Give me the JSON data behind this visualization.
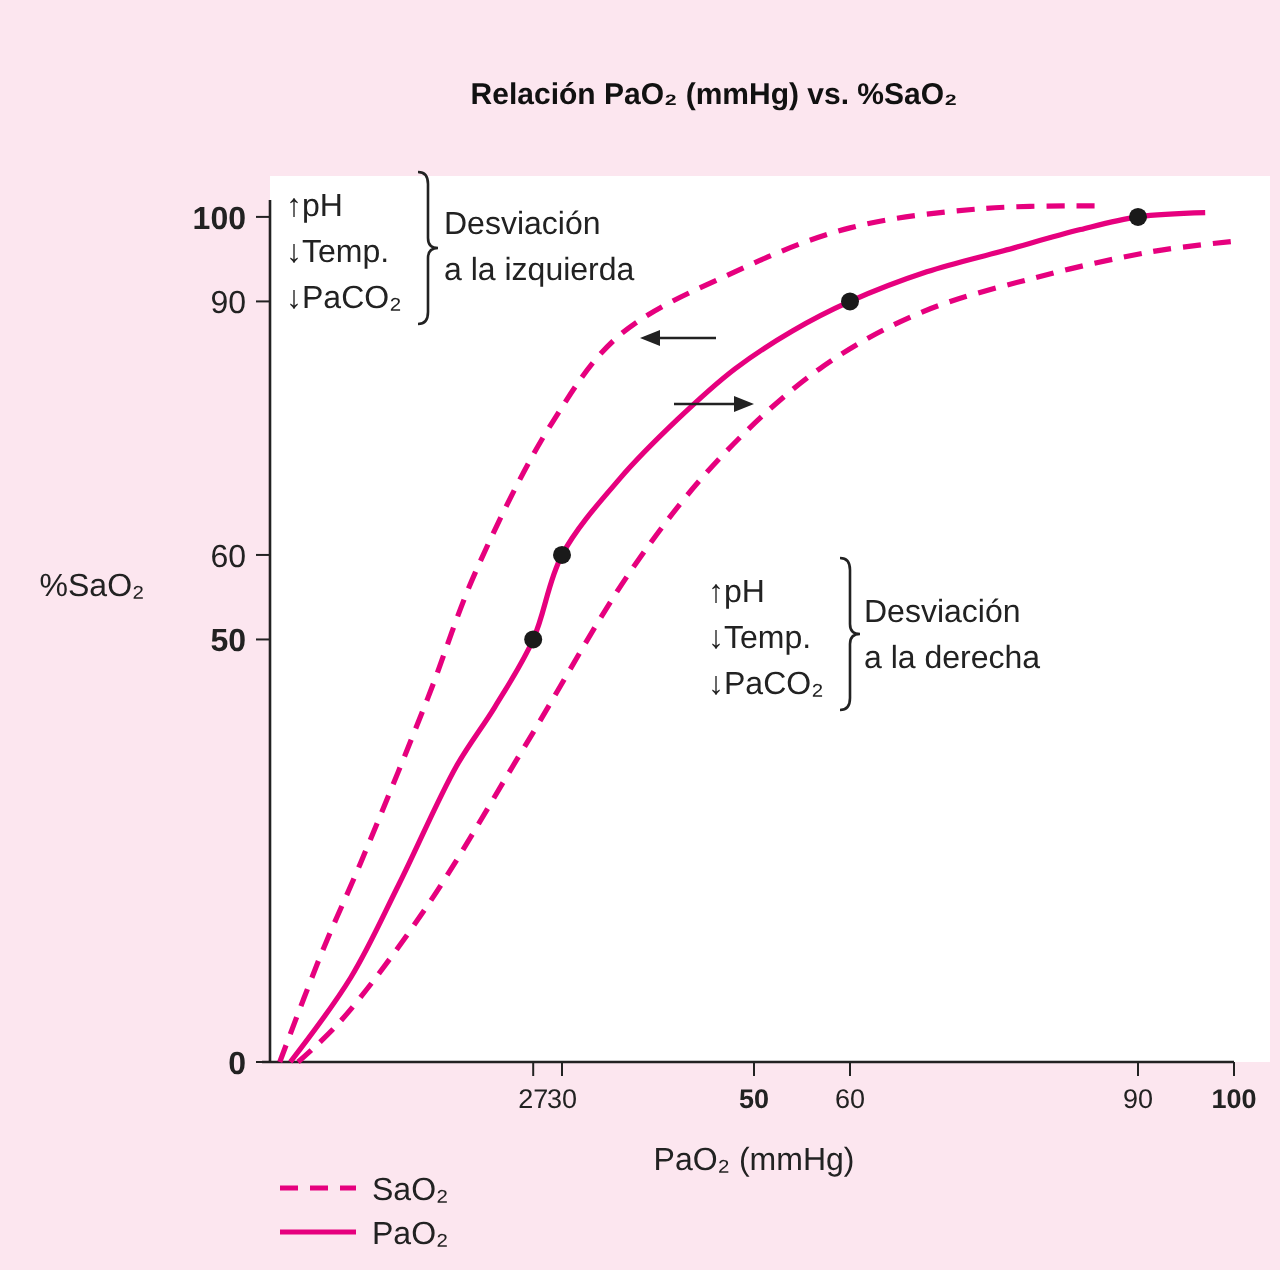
{
  "chart_data": {
    "type": "line",
    "title": "Relación PaO₂ (mmHg) vs. %SaO₂",
    "xlabel": "PaO₂ (mmHg)",
    "ylabel": "%SaO₂",
    "xlim": [
      0,
      100
    ],
    "ylim": [
      0,
      102
    ],
    "xticks": [
      27,
      30,
      50,
      60,
      90,
      100
    ],
    "yticks": [
      0,
      50,
      60,
      90,
      100
    ],
    "grid": false,
    "legend": "bottom left",
    "annotations": [
      "↑pH\n↓Temp.\n↓PaCO₂",
      "Desviación\na la izquierda",
      "↑pH\n↓Temp.\n↓PaCO₂",
      "Desviación\na la derecha"
    ],
    "series": [
      {
        "name": "SaO₂",
        "color": "#e6007e",
        "line_style": "dashed",
        "x": [
          0.6,
          5,
          9,
          16,
          21,
          29,
          36,
          48,
          60,
          74,
          86
        ],
        "values": [
          0,
          13,
          23.5,
          43,
          58,
          75.7,
          86,
          93.5,
          98.7,
          101,
          101.3
        ]
      },
      {
        "color": "#e6007e",
        "line_style": "dashed",
        "x": [
          2.5,
          6.9,
          15.8,
          26.2,
          37.4,
          46.4,
          56.8,
          67.2,
          79.6,
          91.5,
          99.8
        ],
        "values": [
          0,
          4.8,
          18.2,
          37.5,
          58.5,
          71.4,
          82,
          88.6,
          92.9,
          95.9,
          97.1
        ]
      },
      {
        "name": "PaO₂",
        "color": "#e6007e",
        "line_style": "solid",
        "x": [
          1.7,
          8,
          13,
          19,
          23,
          27,
          30,
          36,
          42,
          48,
          54,
          60,
          68,
          76,
          84,
          90,
          97
        ],
        "values": [
          0,
          10,
          21,
          35,
          42,
          50,
          60,
          69,
          76,
          82,
          86.5,
          90,
          93.5,
          96,
          98.5,
          100,
          100.5
        ]
      },
      {
        "type": "scatter",
        "color": "#1a1a1a",
        "marker": "circle",
        "x": [
          27,
          30,
          60,
          90
        ],
        "values": [
          50,
          60,
          90,
          100
        ]
      }
    ]
  }
}
